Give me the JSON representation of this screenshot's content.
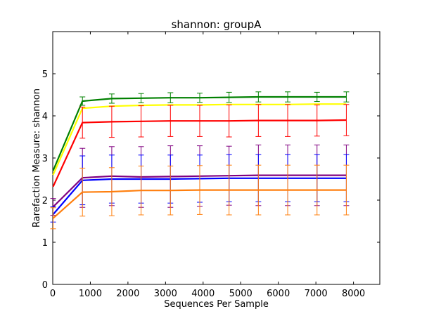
{
  "chart_data": {
    "type": "line",
    "title": "shannon: groupA",
    "xlabel": "Sequences Per Sample",
    "ylabel": "Rarefaction Measure: shannon",
    "xlim": [
      0,
      8700
    ],
    "ylim": [
      0,
      6.0
    ],
    "xticks": [
      "0",
      "1000",
      "2000",
      "3000",
      "4000",
      "5000",
      "6000",
      "7000",
      "8000"
    ],
    "yticks": [
      "0",
      "1",
      "2",
      "3",
      "4",
      "5"
    ],
    "grid": false,
    "legend": "none",
    "x": [
      10,
      790,
      1570,
      2350,
      3130,
      3910,
      4690,
      5470,
      6250,
      7030,
      7810
    ],
    "series": [
      {
        "color": "#008000",
        "values": [
          2.7,
          4.35,
          4.41,
          4.42,
          4.43,
          4.43,
          4.44,
          4.45,
          4.45,
          4.45,
          4.45
        ],
        "errors": [
          0.0,
          0.1,
          0.11,
          0.11,
          0.12,
          0.11,
          0.12,
          0.12,
          0.12,
          0.11,
          0.12
        ]
      },
      {
        "color": "#ffff00",
        "values": [
          2.6,
          4.18,
          4.23,
          4.25,
          4.26,
          4.26,
          4.27,
          4.27,
          4.27,
          4.28,
          4.28
        ],
        "errors": [
          0.0,
          0.0,
          0.0,
          0.0,
          0.0,
          0.0,
          0.0,
          0.0,
          0.0,
          0.0,
          0.0
        ]
      },
      {
        "color": "#ff0000",
        "values": [
          2.32,
          3.84,
          3.86,
          3.87,
          3.88,
          3.88,
          3.88,
          3.89,
          3.89,
          3.89,
          3.9
        ],
        "errors": [
          0.0,
          0.37,
          0.37,
          0.37,
          0.37,
          0.37,
          0.38,
          0.38,
          0.38,
          0.37,
          0.37
        ]
      },
      {
        "color": "#800080",
        "values": [
          1.84,
          2.53,
          2.57,
          2.55,
          2.56,
          2.57,
          2.58,
          2.59,
          2.59,
          2.59,
          2.59
        ],
        "errors": [
          0.2,
          0.7,
          0.7,
          0.72,
          0.73,
          0.72,
          0.7,
          0.72,
          0.72,
          0.72,
          0.72
        ]
      },
      {
        "color": "#0000ff",
        "values": [
          1.66,
          2.47,
          2.5,
          2.5,
          2.5,
          2.51,
          2.52,
          2.52,
          2.52,
          2.52,
          2.52
        ],
        "errors": [
          0.18,
          0.58,
          0.57,
          0.57,
          0.57,
          0.56,
          0.56,
          0.56,
          0.56,
          0.56,
          0.56
        ]
      },
      {
        "color": "#ff7f0e",
        "values": [
          1.57,
          2.19,
          2.2,
          2.23,
          2.23,
          2.24,
          2.24,
          2.24,
          2.24,
          2.24,
          2.24
        ],
        "errors": [
          0.25,
          0.57,
          0.57,
          0.58,
          0.58,
          0.58,
          0.59,
          0.59,
          0.59,
          0.59,
          0.59
        ]
      }
    ]
  }
}
